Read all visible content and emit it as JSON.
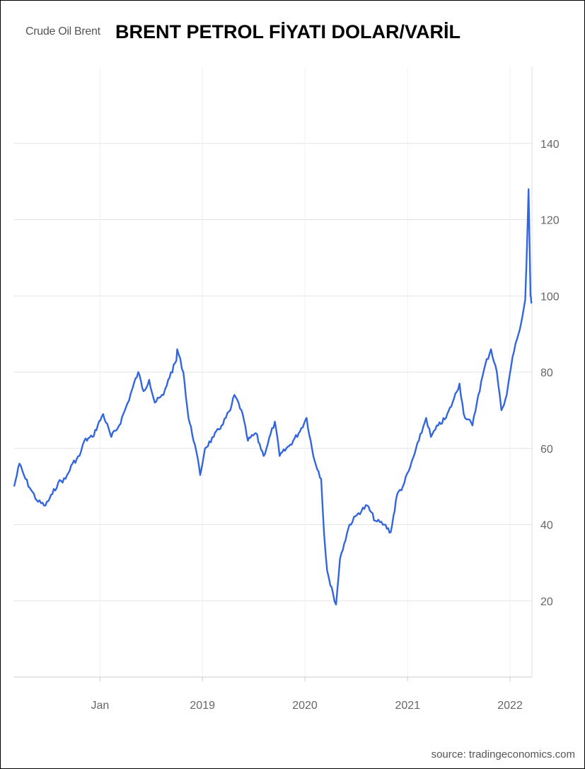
{
  "title": "BRENT PETROL FİYATI DOLAR/VARİL",
  "legend_label": "Crude Oil Brent",
  "source": "source: tradingeconomics.com",
  "colors": {
    "line": "#3366dd",
    "grid": "#e3e3e3",
    "axis_text": "#666666"
  },
  "chart_data": {
    "type": "line",
    "title": "BRENT PETROL FİYATI DOLAR/VARİL",
    "xlabel": "",
    "ylabel": "",
    "ylim": [
      0,
      160
    ],
    "xlim": [
      "2017-03-01",
      "2022-03-20"
    ],
    "yticks": [
      20,
      40,
      60,
      80,
      100,
      120,
      140
    ],
    "xticks": [
      {
        "label": "Jan",
        "x": "2018-01-01"
      },
      {
        "label": "2019",
        "x": "2019-01-01"
      },
      {
        "label": "2020",
        "x": "2020-01-01"
      },
      {
        "label": "2021",
        "x": "2021-01-01"
      },
      {
        "label": "2022",
        "x": "2022-01-01"
      }
    ],
    "grid": true,
    "series": [
      {
        "name": "Crude Oil Brent",
        "x": [
          "2017-03-01",
          "2017-03-20",
          "2017-04-10",
          "2017-05-01",
          "2017-05-25",
          "2017-06-21",
          "2017-07-15",
          "2017-08-05",
          "2017-08-31",
          "2017-09-25",
          "2017-10-20",
          "2017-11-06",
          "2017-12-05",
          "2018-01-12",
          "2018-02-10",
          "2018-03-10",
          "2018-04-10",
          "2018-04-28",
          "2018-05-17",
          "2018-06-05",
          "2018-06-25",
          "2018-07-15",
          "2018-08-15",
          "2018-09-01",
          "2018-09-30",
          "2018-10-03",
          "2018-10-25",
          "2018-11-12",
          "2018-12-05",
          "2018-12-24",
          "2019-01-10",
          "2019-02-10",
          "2019-03-10",
          "2019-04-10",
          "2019-04-25",
          "2019-05-20",
          "2019-06-12",
          "2019-07-10",
          "2019-08-07",
          "2019-09-16",
          "2019-10-03",
          "2019-11-10",
          "2019-12-10",
          "2020-01-07",
          "2020-01-31",
          "2020-02-28",
          "2020-03-09",
          "2020-03-20",
          "2020-04-01",
          "2020-04-10",
          "2020-04-21",
          "2020-05-05",
          "2020-05-20",
          "2020-06-08",
          "2020-07-10",
          "2020-08-10",
          "2020-09-08",
          "2020-10-10",
          "2020-11-02",
          "2020-11-25",
          "2020-12-15",
          "2021-01-10",
          "2021-02-10",
          "2021-03-08",
          "2021-03-25",
          "2021-04-20",
          "2021-05-18",
          "2021-06-10",
          "2021-07-05",
          "2021-07-20",
          "2021-08-20",
          "2021-09-10",
          "2021-10-05",
          "2021-10-25",
          "2021-11-15",
          "2021-12-01",
          "2021-12-20",
          "2022-01-10",
          "2022-01-31",
          "2022-02-15",
          "2022-02-24",
          "2022-03-01",
          "2022-03-08",
          "2022-03-15",
          "2022-03-18"
        ],
        "values": [
          50,
          56,
          52,
          49,
          46,
          45,
          48,
          51,
          52,
          56,
          58,
          62,
          63,
          69,
          63,
          66,
          72,
          76,
          80,
          75,
          78,
          72,
          74,
          78,
          83,
          86,
          80,
          68,
          61,
          53,
          60,
          63,
          66,
          70,
          74,
          70,
          62,
          64,
          58,
          67,
          58,
          61,
          64,
          68,
          58,
          52,
          38,
          28,
          24,
          22,
          19,
          31,
          35,
          40,
          43,
          45,
          41,
          40,
          38,
          48,
          50,
          55,
          62,
          68,
          63,
          66,
          68,
          72,
          77,
          69,
          66,
          74,
          82,
          86,
          80,
          70,
          74,
          84,
          90,
          95,
          99,
          110,
          128,
          100,
          98
        ]
      }
    ]
  }
}
